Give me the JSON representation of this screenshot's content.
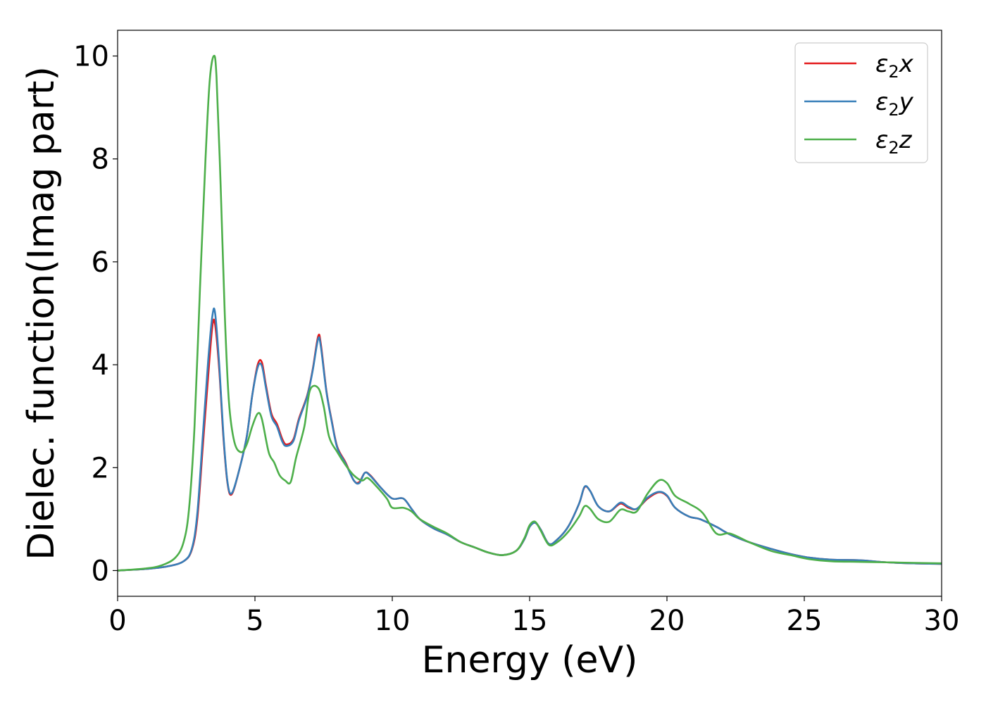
{
  "chart_data": {
    "type": "line",
    "xlabel": "Energy (eV)",
    "ylabel": "Dielec. function(Imag part)",
    "xlim": [
      0,
      30
    ],
    "ylim": [
      -0.5,
      10.5
    ],
    "xticks": [
      0,
      5,
      10,
      15,
      20,
      25,
      30
    ],
    "yticks": [
      0,
      2,
      4,
      6,
      8,
      10
    ],
    "grid": false,
    "legend_position": "top-right",
    "series": [
      {
        "name": "ε₂x",
        "legend_base": "ε",
        "legend_sub": "2",
        "legend_suffix": "x",
        "color": "#e41a1c",
        "points": [
          [
            0,
            0
          ],
          [
            1,
            0.03
          ],
          [
            1.8,
            0.08
          ],
          [
            2.4,
            0.18
          ],
          [
            2.7,
            0.4
          ],
          [
            2.9,
            1.0
          ],
          [
            3.1,
            2.4
          ],
          [
            3.3,
            3.8
          ],
          [
            3.45,
            4.75
          ],
          [
            3.55,
            4.78
          ],
          [
            3.7,
            3.9
          ],
          [
            3.85,
            2.6
          ],
          [
            4.0,
            1.7
          ],
          [
            4.15,
            1.48
          ],
          [
            4.4,
            1.9
          ],
          [
            4.7,
            2.6
          ],
          [
            4.9,
            3.4
          ],
          [
            5.1,
            4.0
          ],
          [
            5.25,
            4.05
          ],
          [
            5.4,
            3.6
          ],
          [
            5.6,
            3.05
          ],
          [
            5.8,
            2.85
          ],
          [
            6.0,
            2.55
          ],
          [
            6.15,
            2.45
          ],
          [
            6.4,
            2.55
          ],
          [
            6.6,
            2.95
          ],
          [
            6.9,
            3.4
          ],
          [
            7.1,
            3.9
          ],
          [
            7.3,
            4.55
          ],
          [
            7.4,
            4.4
          ],
          [
            7.6,
            3.5
          ],
          [
            7.8,
            2.9
          ],
          [
            8.0,
            2.4
          ],
          [
            8.3,
            2.1
          ],
          [
            8.6,
            1.75
          ],
          [
            8.8,
            1.72
          ],
          [
            9.0,
            1.9
          ],
          [
            9.2,
            1.85
          ],
          [
            9.6,
            1.6
          ],
          [
            10.0,
            1.4
          ],
          [
            10.4,
            1.4
          ],
          [
            10.7,
            1.2
          ],
          [
            11.0,
            1.0
          ],
          [
            11.5,
            0.82
          ],
          [
            12.0,
            0.7
          ],
          [
            12.5,
            0.55
          ],
          [
            13.0,
            0.45
          ],
          [
            13.5,
            0.35
          ],
          [
            14.0,
            0.3
          ],
          [
            14.5,
            0.38
          ],
          [
            14.8,
            0.6
          ],
          [
            15.0,
            0.85
          ],
          [
            15.2,
            0.93
          ],
          [
            15.4,
            0.8
          ],
          [
            15.7,
            0.52
          ],
          [
            16.0,
            0.6
          ],
          [
            16.4,
            0.85
          ],
          [
            16.8,
            1.3
          ],
          [
            17.0,
            1.62
          ],
          [
            17.2,
            1.55
          ],
          [
            17.5,
            1.25
          ],
          [
            17.9,
            1.15
          ],
          [
            18.3,
            1.3
          ],
          [
            18.6,
            1.22
          ],
          [
            18.9,
            1.2
          ],
          [
            19.3,
            1.4
          ],
          [
            19.7,
            1.52
          ],
          [
            20.0,
            1.45
          ],
          [
            20.3,
            1.22
          ],
          [
            20.8,
            1.05
          ],
          [
            21.2,
            1.0
          ],
          [
            21.8,
            0.85
          ],
          [
            22.3,
            0.7
          ],
          [
            23.0,
            0.55
          ],
          [
            23.8,
            0.42
          ],
          [
            24.5,
            0.32
          ],
          [
            25.2,
            0.25
          ],
          [
            26.0,
            0.21
          ],
          [
            27.0,
            0.2
          ],
          [
            28.0,
            0.16
          ],
          [
            29.0,
            0.14
          ],
          [
            30.0,
            0.13
          ]
        ]
      },
      {
        "name": "ε₂y",
        "legend_base": "ε",
        "legend_sub": "2",
        "legend_suffix": "y",
        "color": "#377eb8",
        "points": [
          [
            0,
            0
          ],
          [
            1,
            0.03
          ],
          [
            1.8,
            0.08
          ],
          [
            2.4,
            0.18
          ],
          [
            2.7,
            0.42
          ],
          [
            2.9,
            1.1
          ],
          [
            3.1,
            2.6
          ],
          [
            3.3,
            4.1
          ],
          [
            3.45,
            4.95
          ],
          [
            3.55,
            5.0
          ],
          [
            3.7,
            4.0
          ],
          [
            3.85,
            2.65
          ],
          [
            4.0,
            1.72
          ],
          [
            4.15,
            1.5
          ],
          [
            4.4,
            1.9
          ],
          [
            4.7,
            2.6
          ],
          [
            4.9,
            3.4
          ],
          [
            5.1,
            3.95
          ],
          [
            5.25,
            3.98
          ],
          [
            5.4,
            3.55
          ],
          [
            5.6,
            3.0
          ],
          [
            5.8,
            2.8
          ],
          [
            6.0,
            2.5
          ],
          [
            6.15,
            2.42
          ],
          [
            6.4,
            2.52
          ],
          [
            6.6,
            2.92
          ],
          [
            6.9,
            3.38
          ],
          [
            7.1,
            3.88
          ],
          [
            7.3,
            4.5
          ],
          [
            7.4,
            4.35
          ],
          [
            7.6,
            3.48
          ],
          [
            7.8,
            2.88
          ],
          [
            8.0,
            2.38
          ],
          [
            8.3,
            2.08
          ],
          [
            8.6,
            1.75
          ],
          [
            8.8,
            1.7
          ],
          [
            9.0,
            1.9
          ],
          [
            9.2,
            1.84
          ],
          [
            9.6,
            1.6
          ],
          [
            10.0,
            1.4
          ],
          [
            10.4,
            1.4
          ],
          [
            10.7,
            1.2
          ],
          [
            11.0,
            1.0
          ],
          [
            11.5,
            0.82
          ],
          [
            12.0,
            0.7
          ],
          [
            12.5,
            0.55
          ],
          [
            13.0,
            0.45
          ],
          [
            13.5,
            0.35
          ],
          [
            14.0,
            0.3
          ],
          [
            14.5,
            0.38
          ],
          [
            14.8,
            0.6
          ],
          [
            15.0,
            0.85
          ],
          [
            15.2,
            0.93
          ],
          [
            15.4,
            0.8
          ],
          [
            15.7,
            0.52
          ],
          [
            16.0,
            0.6
          ],
          [
            16.4,
            0.85
          ],
          [
            16.8,
            1.3
          ],
          [
            17.0,
            1.63
          ],
          [
            17.2,
            1.55
          ],
          [
            17.5,
            1.25
          ],
          [
            17.9,
            1.15
          ],
          [
            18.3,
            1.32
          ],
          [
            18.6,
            1.24
          ],
          [
            18.9,
            1.2
          ],
          [
            19.3,
            1.42
          ],
          [
            19.7,
            1.53
          ],
          [
            20.0,
            1.46
          ],
          [
            20.3,
            1.22
          ],
          [
            20.8,
            1.05
          ],
          [
            21.2,
            1.0
          ],
          [
            21.8,
            0.85
          ],
          [
            22.3,
            0.7
          ],
          [
            23.0,
            0.55
          ],
          [
            23.8,
            0.42
          ],
          [
            24.5,
            0.32
          ],
          [
            25.2,
            0.25
          ],
          [
            26.0,
            0.21
          ],
          [
            27.0,
            0.2
          ],
          [
            28.0,
            0.16
          ],
          [
            29.0,
            0.14
          ],
          [
            30.0,
            0.13
          ]
        ]
      },
      {
        "name": "ε₂z",
        "legend_base": "ε",
        "legend_sub": "2",
        "legend_suffix": "z",
        "color": "#4daf4a",
        "points": [
          [
            0,
            0
          ],
          [
            1,
            0.04
          ],
          [
            1.6,
            0.1
          ],
          [
            2.1,
            0.25
          ],
          [
            2.4,
            0.55
          ],
          [
            2.6,
            1.2
          ],
          [
            2.8,
            2.8
          ],
          [
            3.0,
            5.5
          ],
          [
            3.2,
            8.0
          ],
          [
            3.35,
            9.5
          ],
          [
            3.5,
            10.0
          ],
          [
            3.6,
            9.6
          ],
          [
            3.75,
            7.5
          ],
          [
            3.9,
            5.0
          ],
          [
            4.05,
            3.3
          ],
          [
            4.25,
            2.5
          ],
          [
            4.5,
            2.3
          ],
          [
            4.7,
            2.45
          ],
          [
            4.9,
            2.8
          ],
          [
            5.1,
            3.05
          ],
          [
            5.25,
            2.95
          ],
          [
            5.5,
            2.3
          ],
          [
            5.7,
            2.1
          ],
          [
            5.9,
            1.85
          ],
          [
            6.1,
            1.75
          ],
          [
            6.3,
            1.72
          ],
          [
            6.5,
            2.2
          ],
          [
            6.8,
            2.8
          ],
          [
            7.0,
            3.5
          ],
          [
            7.3,
            3.55
          ],
          [
            7.5,
            3.2
          ],
          [
            7.7,
            2.6
          ],
          [
            8.0,
            2.3
          ],
          [
            8.3,
            2.05
          ],
          [
            8.6,
            1.85
          ],
          [
            8.9,
            1.75
          ],
          [
            9.1,
            1.8
          ],
          [
            9.4,
            1.65
          ],
          [
            9.8,
            1.4
          ],
          [
            10.0,
            1.22
          ],
          [
            10.4,
            1.22
          ],
          [
            10.7,
            1.15
          ],
          [
            11.0,
            1.0
          ],
          [
            11.5,
            0.85
          ],
          [
            12.0,
            0.72
          ],
          [
            12.5,
            0.55
          ],
          [
            13.0,
            0.45
          ],
          [
            13.5,
            0.35
          ],
          [
            14.0,
            0.3
          ],
          [
            14.5,
            0.38
          ],
          [
            14.8,
            0.62
          ],
          [
            15.0,
            0.88
          ],
          [
            15.2,
            0.95
          ],
          [
            15.4,
            0.78
          ],
          [
            15.7,
            0.5
          ],
          [
            16.0,
            0.55
          ],
          [
            16.4,
            0.75
          ],
          [
            16.8,
            1.05
          ],
          [
            17.0,
            1.25
          ],
          [
            17.2,
            1.2
          ],
          [
            17.5,
            1.0
          ],
          [
            17.9,
            0.95
          ],
          [
            18.3,
            1.18
          ],
          [
            18.6,
            1.15
          ],
          [
            18.9,
            1.15
          ],
          [
            19.3,
            1.5
          ],
          [
            19.7,
            1.75
          ],
          [
            20.0,
            1.7
          ],
          [
            20.3,
            1.45
          ],
          [
            20.8,
            1.3
          ],
          [
            21.3,
            1.12
          ],
          [
            21.8,
            0.72
          ],
          [
            22.3,
            0.72
          ],
          [
            23.0,
            0.55
          ],
          [
            23.8,
            0.38
          ],
          [
            24.5,
            0.3
          ],
          [
            25.2,
            0.22
          ],
          [
            26.0,
            0.18
          ],
          [
            27.0,
            0.17
          ],
          [
            28.0,
            0.16
          ],
          [
            29.0,
            0.15
          ],
          [
            30.0,
            0.14
          ]
        ]
      }
    ]
  }
}
